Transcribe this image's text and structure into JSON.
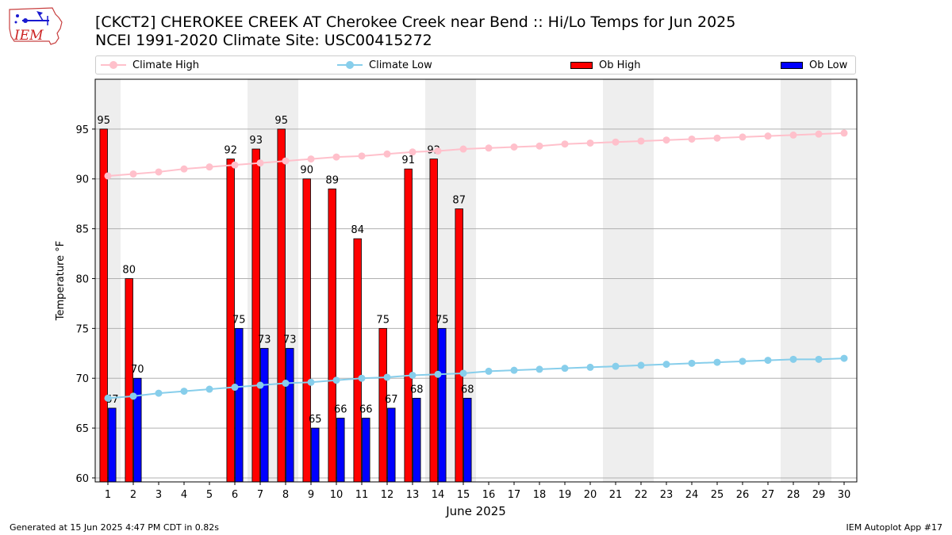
{
  "header": {
    "title_line1": "[CKCT2] CHEROKEE CREEK  AT Cherokee Creek near Bend :: Hi/Lo Temps for Jun 2025",
    "title_line2": "NCEI 1991-2020 Climate Site: USC00415272",
    "logo_text": "IEM"
  },
  "footer": {
    "left": "Generated at 15 Jun 2025 4:47 PM CDT in 0.82s",
    "right": "IEM Autoplot App #17"
  },
  "colors": {
    "ob_high": "#ff0000",
    "ob_low": "#0000ff",
    "climate_high": "#ffc0cb",
    "climate_low": "#87ceeb",
    "weekend_shade": "#eeeeee",
    "grid": "#b0b0b0"
  },
  "chart_data": {
    "type": "bar",
    "xlabel": "June 2025",
    "ylabel": "Temperature °F",
    "ylim": [
      59.6,
      100
    ],
    "xlim": [
      0.5,
      30.5
    ],
    "yticks": [
      60,
      65,
      70,
      75,
      80,
      85,
      90,
      95
    ],
    "days": [
      1,
      2,
      3,
      4,
      5,
      6,
      7,
      8,
      9,
      10,
      11,
      12,
      13,
      14,
      15,
      16,
      17,
      18,
      19,
      20,
      21,
      22,
      23,
      24,
      25,
      26,
      27,
      28,
      29,
      30
    ],
    "grid": "horizontal",
    "legend_position": "top",
    "weekend_ranges": [
      [
        0.5,
        1.5
      ],
      [
        6.5,
        8.5
      ],
      [
        13.5,
        15.5
      ],
      [
        20.5,
        22.5
      ],
      [
        27.5,
        29.5
      ]
    ],
    "series": [
      {
        "name": "Climate High",
        "kind": "line",
        "values": [
          90.3,
          90.5,
          90.7,
          91.0,
          91.2,
          91.4,
          91.6,
          91.8,
          92.0,
          92.2,
          92.3,
          92.5,
          92.7,
          92.8,
          93.0,
          93.1,
          93.2,
          93.3,
          93.5,
          93.6,
          93.7,
          93.8,
          93.9,
          94.0,
          94.1,
          94.2,
          94.3,
          94.4,
          94.5,
          94.6
        ]
      },
      {
        "name": "Climate Low",
        "kind": "line",
        "values": [
          68.0,
          68.2,
          68.5,
          68.7,
          68.9,
          69.1,
          69.3,
          69.5,
          69.6,
          69.8,
          70.0,
          70.1,
          70.3,
          70.4,
          70.5,
          70.7,
          70.8,
          70.9,
          71.0,
          71.1,
          71.2,
          71.3,
          71.4,
          71.5,
          71.6,
          71.7,
          71.8,
          71.9,
          71.9,
          72.0
        ]
      },
      {
        "name": "Ob High",
        "kind": "bar",
        "values": [
          95,
          80,
          null,
          null,
          null,
          92,
          93,
          95,
          90,
          89,
          84,
          75,
          91,
          92,
          87,
          null,
          null,
          null,
          null,
          null,
          null,
          null,
          null,
          null,
          null,
          null,
          null,
          null,
          null,
          null
        ]
      },
      {
        "name": "Ob Low",
        "kind": "bar",
        "values": [
          67,
          70,
          null,
          null,
          null,
          75,
          73,
          73,
          65,
          66,
          66,
          67,
          68,
          75,
          68,
          null,
          null,
          null,
          null,
          null,
          null,
          null,
          null,
          null,
          null,
          null,
          null,
          null,
          null,
          null
        ]
      }
    ]
  }
}
